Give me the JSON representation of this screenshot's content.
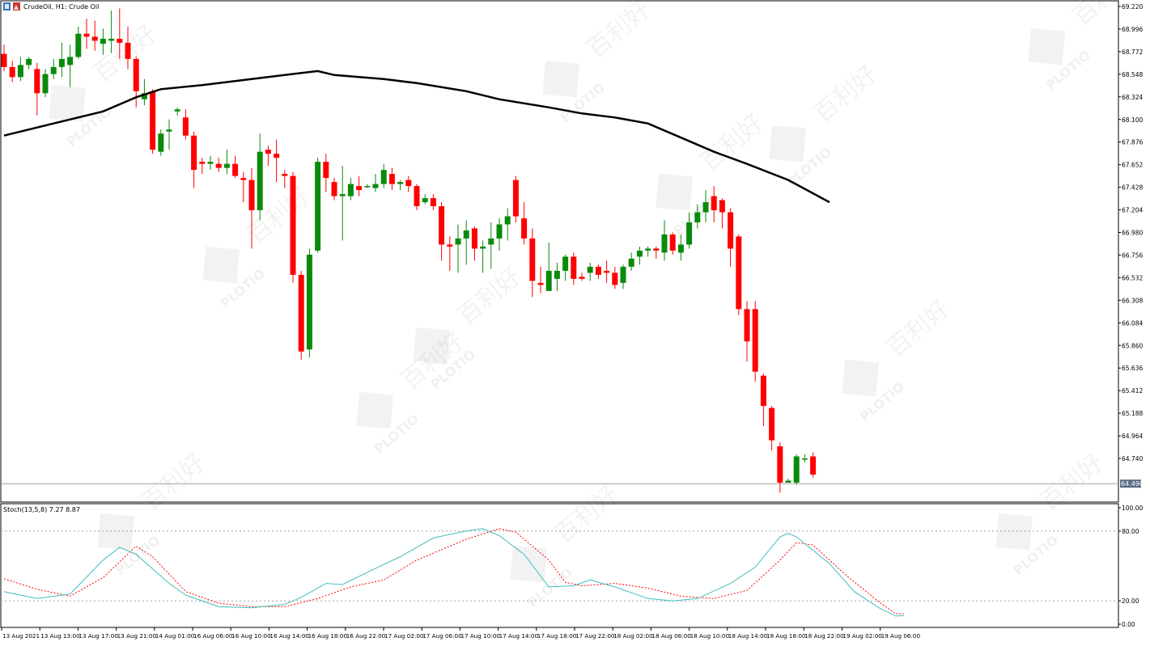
{
  "header": {
    "title": "CrudeOil, H1:  Crude Oil",
    "icon": "chart-window-icon"
  },
  "price_pane": {
    "y_ticks": [
      "69.220",
      "68.996",
      "68.772",
      "68.548",
      "68.324",
      "68.100",
      "67.876",
      "67.652",
      "67.428",
      "67.204",
      "66.980",
      "66.756",
      "66.532",
      "66.308",
      "66.084",
      "65.860",
      "65.636",
      "65.412",
      "65.188",
      "64.964",
      "64.740"
    ],
    "current_price_label": "64.490",
    "ylim": [
      64.28,
      69.24
    ]
  },
  "stoch_pane": {
    "label": "Stoch(13,5,8) 7.27 8.87",
    "y_ticks": [
      "100.00",
      "80.00",
      "20.00",
      "0.00"
    ],
    "ylim": [
      0,
      100
    ],
    "levels": [
      80,
      20
    ]
  },
  "x_ticks": [
    "13 Aug 2021",
    "13 Aug 13:00",
    "13 Aug 17:00",
    "13 Aug 21:00",
    "14 Aug 01:00",
    "16 Aug 06:00",
    "16 Aug 10:00",
    "16 Aug 14:00",
    "16 Aug 18:00",
    "16 Aug 22:00",
    "17 Aug 02:00",
    "17 Aug 06:00",
    "17 Aug 10:00",
    "17 Aug 14:00",
    "17 Aug 18:00",
    "17 Aug 22:00",
    "18 Aug 02:00",
    "18 Aug 06:00",
    "18 Aug 10:00",
    "18 Aug 14:00",
    "18 Aug 18:00",
    "18 Aug 22:00",
    "19 Aug 02:00",
    "19 Aug 06:00"
  ],
  "watermark": {
    "logo_text": "PLOTIO",
    "chinese_text": "百利好"
  },
  "colors": {
    "bull": "#0a8a0a",
    "bear": "#ff0000",
    "ma": "#000000",
    "stoch_main": "#3fbfbf",
    "stoch_signal": "#ff0000",
    "grid_level": "#a0a0a0",
    "price_line": "#a0a0a0",
    "price_label_bg": "#5a6e84"
  },
  "chart_data": {
    "type": "candlestick",
    "symbol": "CrudeOil",
    "timeframe": "H1",
    "candles": [
      [
        68.75,
        68.62,
        68.84,
        68.58
      ],
      [
        68.62,
        68.52,
        68.68,
        68.47
      ],
      [
        68.52,
        68.64,
        68.72,
        68.48
      ],
      [
        68.64,
        68.7,
        68.72,
        68.6
      ],
      [
        68.6,
        68.36,
        68.66,
        68.14
      ],
      [
        68.36,
        68.55,
        68.6,
        68.32
      ],
      [
        68.55,
        68.62,
        68.7,
        68.5
      ],
      [
        68.62,
        68.7,
        68.86,
        68.52
      ],
      [
        68.64,
        68.72,
        68.84,
        68.42
      ],
      [
        68.72,
        68.95,
        69.02,
        68.7
      ],
      [
        68.95,
        68.92,
        69.1,
        68.8
      ],
      [
        68.92,
        68.88,
        69.08,
        68.78
      ],
      [
        68.85,
        68.9,
        69.0,
        68.74
      ],
      [
        68.88,
        68.9,
        69.18,
        68.76
      ],
      [
        68.9,
        68.86,
        69.2,
        68.7
      ],
      [
        68.86,
        68.7,
        69.02,
        68.6
      ],
      [
        68.7,
        68.38,
        68.72,
        68.22
      ],
      [
        68.3,
        68.36,
        68.5,
        68.24
      ],
      [
        68.38,
        67.8,
        68.4,
        67.76
      ],
      [
        67.78,
        67.96,
        68.0,
        67.74
      ],
      [
        67.98,
        68.0,
        68.1,
        67.8
      ],
      [
        68.18,
        68.2,
        68.22,
        68.14
      ],
      [
        68.12,
        67.94,
        68.2,
        67.9
      ],
      [
        67.94,
        67.6,
        67.98,
        67.42
      ],
      [
        67.68,
        67.66,
        67.72,
        67.56
      ],
      [
        67.66,
        67.68,
        67.74,
        67.6
      ],
      [
        67.66,
        67.62,
        67.72,
        67.58
      ],
      [
        67.62,
        67.66,
        67.8,
        67.56
      ],
      [
        67.66,
        67.54,
        67.74,
        67.52
      ],
      [
        67.52,
        67.5,
        67.58,
        67.28
      ],
      [
        67.5,
        67.2,
        67.62,
        66.82
      ],
      [
        67.2,
        67.78,
        67.96,
        67.1
      ],
      [
        67.8,
        67.76,
        67.84,
        67.64
      ],
      [
        67.76,
        67.72,
        67.9,
        67.48
      ],
      [
        67.56,
        67.54,
        67.6,
        67.42
      ],
      [
        67.54,
        66.56,
        67.58,
        66.48
      ],
      [
        66.56,
        65.8,
        66.6,
        65.72
      ],
      [
        65.82,
        66.76,
        66.82,
        65.74
      ],
      [
        66.8,
        67.68,
        67.72,
        66.78
      ],
      [
        67.68,
        67.52,
        67.76,
        67.38
      ],
      [
        67.48,
        67.34,
        67.52,
        67.3
      ],
      [
        67.34,
        67.36,
        67.64,
        66.9
      ],
      [
        67.34,
        67.46,
        67.52,
        67.3
      ],
      [
        67.44,
        67.4,
        67.54,
        67.34
      ],
      [
        67.44,
        67.44,
        67.46,
        67.42
      ],
      [
        67.42,
        67.46,
        67.56,
        67.38
      ],
      [
        67.46,
        67.6,
        67.66,
        67.42
      ],
      [
        67.56,
        67.46,
        67.62,
        67.4
      ],
      [
        67.46,
        67.48,
        67.5,
        67.4
      ],
      [
        67.5,
        67.44,
        67.54,
        67.38
      ],
      [
        67.44,
        67.24,
        67.46,
        67.2
      ],
      [
        67.28,
        67.32,
        67.36,
        67.26
      ],
      [
        67.32,
        67.24,
        67.36,
        67.2
      ],
      [
        67.24,
        66.86,
        67.28,
        66.7
      ],
      [
        66.86,
        66.84,
        66.94,
        66.6
      ],
      [
        66.86,
        66.92,
        67.06,
        66.58
      ],
      [
        66.92,
        67.0,
        67.1,
        66.66
      ],
      [
        67.02,
        66.82,
        67.04,
        66.7
      ],
      [
        66.82,
        66.84,
        66.9,
        66.58
      ],
      [
        66.86,
        66.92,
        67.08,
        66.62
      ],
      [
        66.92,
        67.06,
        67.12,
        66.8
      ],
      [
        67.06,
        67.14,
        67.22,
        66.9
      ],
      [
        67.5,
        67.14,
        67.54,
        67.08
      ],
      [
        67.12,
        66.92,
        67.28,
        66.86
      ],
      [
        66.92,
        66.5,
        67.02,
        66.34
      ],
      [
        66.48,
        66.46,
        66.64,
        66.38
      ],
      [
        66.4,
        66.6,
        66.88,
        66.48
      ],
      [
        66.52,
        66.6,
        66.68,
        66.4
      ],
      [
        66.6,
        66.74,
        66.76,
        66.5
      ],
      [
        66.74,
        66.52,
        66.78,
        66.46
      ],
      [
        66.54,
        66.52,
        66.58,
        66.5
      ],
      [
        66.58,
        66.64,
        66.68,
        66.5
      ],
      [
        66.64,
        66.56,
        66.66,
        66.52
      ],
      [
        66.6,
        66.58,
        66.7,
        66.48
      ],
      [
        66.58,
        66.46,
        66.64,
        66.42
      ],
      [
        66.48,
        66.64,
        66.66,
        66.42
      ],
      [
        66.64,
        66.72,
        66.78,
        66.6
      ],
      [
        66.74,
        66.8,
        66.84,
        66.66
      ],
      [
        66.8,
        66.82,
        66.84,
        66.74
      ],
      [
        66.82,
        66.8,
        66.84,
        66.72
      ],
      [
        66.78,
        66.96,
        67.1,
        66.7
      ],
      [
        66.96,
        66.8,
        66.98,
        66.76
      ],
      [
        66.78,
        66.86,
        66.96,
        66.7
      ],
      [
        66.86,
        67.08,
        67.18,
        66.82
      ],
      [
        67.08,
        67.18,
        67.26,
        67.02
      ],
      [
        67.18,
        67.28,
        67.4,
        67.08
      ],
      [
        67.34,
        67.2,
        67.44,
        67.08
      ],
      [
        67.3,
        67.18,
        67.32,
        67.02
      ],
      [
        67.18,
        66.82,
        67.22,
        66.64
      ],
      [
        66.94,
        66.22,
        66.96,
        66.16
      ],
      [
        66.22,
        65.9,
        66.3,
        65.7
      ],
      [
        66.22,
        65.6,
        66.3,
        65.5
      ],
      [
        65.56,
        65.26,
        65.58,
        65.06
      ],
      [
        65.24,
        64.92,
        65.26,
        64.82
      ],
      [
        64.86,
        64.5,
        64.9,
        64.4
      ],
      [
        64.5,
        64.52,
        64.54,
        64.5
      ],
      [
        64.5,
        64.76,
        64.78,
        64.48
      ],
      [
        64.74,
        64.74,
        64.78,
        64.7
      ],
      [
        64.76,
        64.58,
        64.8,
        64.55
      ]
    ],
    "ma_points": [
      [
        0,
        67.94
      ],
      [
        6,
        68.06
      ],
      [
        12,
        68.18
      ],
      [
        16,
        68.32
      ],
      [
        19,
        68.4
      ],
      [
        24,
        68.44
      ],
      [
        28,
        68.48
      ],
      [
        34,
        68.54
      ],
      [
        38,
        68.58
      ],
      [
        40,
        68.54
      ],
      [
        46,
        68.5
      ],
      [
        50,
        68.46
      ],
      [
        56,
        68.38
      ],
      [
        60,
        68.3
      ],
      [
        66,
        68.22
      ],
      [
        70,
        68.16
      ],
      [
        74,
        68.12
      ],
      [
        78,
        68.06
      ],
      [
        82,
        67.92
      ],
      [
        86,
        67.78
      ],
      [
        90,
        67.66
      ],
      [
        95,
        67.5
      ],
      [
        100,
        67.28
      ]
    ],
    "stoch_main": [
      [
        0,
        28
      ],
      [
        4,
        22
      ],
      [
        8,
        26
      ],
      [
        12,
        55
      ],
      [
        14,
        66
      ],
      [
        16,
        60
      ],
      [
        20,
        35
      ],
      [
        22,
        25
      ],
      [
        26,
        15
      ],
      [
        30,
        14
      ],
      [
        34,
        17
      ],
      [
        36,
        23
      ],
      [
        39,
        35
      ],
      [
        41,
        34
      ],
      [
        45,
        48
      ],
      [
        48,
        58
      ],
      [
        52,
        74
      ],
      [
        56,
        80
      ],
      [
        58,
        82
      ],
      [
        60,
        76
      ],
      [
        63,
        60
      ],
      [
        66,
        32
      ],
      [
        69,
        33
      ],
      [
        71,
        38
      ],
      [
        74,
        32
      ],
      [
        78,
        22
      ],
      [
        81,
        20
      ],
      [
        84,
        22
      ],
      [
        88,
        35
      ],
      [
        91,
        49
      ],
      [
        94,
        75
      ],
      [
        95,
        78
      ],
      [
        96,
        75
      ],
      [
        100,
        52
      ],
      [
        103,
        28
      ],
      [
        106,
        14
      ],
      [
        108,
        7
      ],
      [
        109,
        7.27
      ]
    ],
    "stoch_signal": [
      [
        0,
        39
      ],
      [
        4,
        30
      ],
      [
        8,
        24
      ],
      [
        12,
        40
      ],
      [
        16,
        67
      ],
      [
        18,
        58
      ],
      [
        22,
        28
      ],
      [
        26,
        18
      ],
      [
        30,
        15
      ],
      [
        34,
        15
      ],
      [
        38,
        22
      ],
      [
        42,
        32
      ],
      [
        46,
        38
      ],
      [
        50,
        55
      ],
      [
        56,
        73
      ],
      [
        60,
        82
      ],
      [
        62,
        79
      ],
      [
        66,
        55
      ],
      [
        68,
        36
      ],
      [
        70,
        33
      ],
      [
        74,
        35
      ],
      [
        78,
        31
      ],
      [
        82,
        24
      ],
      [
        86,
        22
      ],
      [
        90,
        29
      ],
      [
        94,
        55
      ],
      [
        96,
        70
      ],
      [
        98,
        68
      ],
      [
        102,
        42
      ],
      [
        106,
        19
      ],
      [
        108,
        9
      ],
      [
        109,
        8.87
      ]
    ]
  }
}
